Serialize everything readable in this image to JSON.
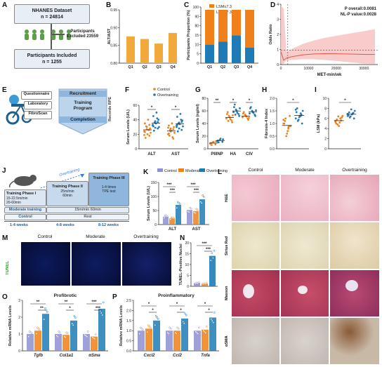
{
  "panel_letters": [
    "A",
    "B",
    "C",
    "D",
    "E",
    "F",
    "G",
    "H",
    "I",
    "J",
    "K",
    "L",
    "M",
    "N",
    "O",
    "P"
  ],
  "A": {
    "dataset_title": "NHANES Dataset",
    "dataset_n": "n = 24814",
    "excluded_title": "Participants",
    "excluded_sub": "Excluded 23559",
    "included_title": "Participants Included",
    "included_n": "n = 1255"
  },
  "E": {
    "items": [
      "Questionnaire",
      "Laboratory",
      "FibroScan"
    ],
    "recruit": "Recruitment",
    "program_line1": "Training",
    "program_line2": "Program",
    "completion": "Completion",
    "side_label": "Records RPE"
  },
  "J": {
    "overtraining": "Overtraining",
    "phase1_title": "Training Phase I",
    "phase1_d1": "15-22.5m/min",
    "phase1_d2": "20-60min",
    "phase2_title": "Training Phase II",
    "phase2_d1": "25m/min",
    "phase2_d2": "60min",
    "phase3_title": "Training Phase III",
    "phase3_d1": "1-4 times",
    "phase3_d2": "TPE test",
    "moderate": "Moderate training",
    "moderate_detail": "15m/min 60min",
    "control": "Control",
    "rest": "Rest",
    "w1": "1-4 weeks",
    "w2": "4-8 weeks",
    "w3": "8-12 weeks"
  },
  "L": {
    "col_heads": [
      "Control",
      "Moderate",
      "Overtraining"
    ],
    "row_labels": [
      "H&E",
      "Sirius Red",
      "Masson",
      "αSMA"
    ]
  },
  "M": {
    "col_heads": [
      "Control",
      "Moderate",
      "Overtraining"
    ],
    "row_label": "TUNEL"
  },
  "colors": {
    "control": "#8f8fd1",
    "moderate": "#f0801a",
    "overtraining": "#1f7bb6",
    "curve": "#e0574c",
    "band": "#f7c6c4",
    "bar_yellow": "#f2a93b"
  },
  "chart_data": [
    {
      "panel": "B",
      "type": "bar",
      "title": "",
      "ylabel": "ALT/AST",
      "categories": [
        "Q1",
        "Q2",
        "Q3",
        "Q4"
      ],
      "values": [
        0.875,
        0.868,
        0.855,
        0.885
      ],
      "ylim": [
        0.8,
        0.95
      ],
      "yticks": [
        "0.80",
        "0.85",
        "0.90",
        "0.95"
      ],
      "break": true
    },
    {
      "panel": "C",
      "type": "bar",
      "ylabel": "Participants Proportion (%)",
      "categories": [
        "Q1",
        "Q2",
        "Q3",
        "Q4"
      ],
      "series": [
        {
          "name": "LSM≤7.3",
          "values": [
            88,
            86,
            82,
            90
          ]
        },
        {
          "name": "LSM≥7.3",
          "values": [
            12,
            14,
            18,
            10
          ]
        }
      ],
      "yticks": [
        "0",
        "5",
        "10",
        "15",
        "80",
        "90",
        "100"
      ]
    },
    {
      "panel": "D",
      "type": "line",
      "xlabel": "MET-min/wk",
      "ylabel": "Odds Ratio",
      "annotations": [
        "P overall:0.0081",
        "NL-P value:0.0028"
      ],
      "x": [
        0,
        1000,
        2000,
        4000,
        8000,
        12000,
        16000,
        20000,
        25000,
        30000,
        34000
      ],
      "y": [
        0.9,
        0.3,
        0.45,
        0.55,
        0.68,
        0.74,
        0.76,
        0.75,
        0.73,
        0.71,
        0.7
      ],
      "xticks": [
        "0",
        "10000",
        "20000",
        "30000"
      ],
      "yticks": [
        "0",
        "1",
        "2",
        "3",
        "4"
      ],
      "xlim": [
        0,
        35000
      ],
      "ylim": [
        0,
        4.2
      ]
    },
    {
      "panel": "F",
      "type": "scatter",
      "ylabel": "Serum Levels (U/L)",
      "legend": [
        "Control",
        "Overtraining"
      ],
      "categories": [
        "ALT",
        "AST"
      ],
      "series": [
        {
          "name": "Control",
          "values": [
            [
              24,
              30,
              18,
              35,
              20,
              28,
              15,
              40,
              22,
              31,
              26,
              19,
              27,
              33,
              23
            ],
            [
              20,
              28,
              14,
              32,
              25,
              30,
              18,
              35,
              22,
              26,
              16,
              29,
              24,
              27,
              21
            ]
          ]
        },
        {
          "name": "Overtraining",
          "values": [
            [
              32,
              38,
              28,
              45,
              35,
              40,
              25,
              50,
              30,
              36,
              42,
              33,
              29,
              37,
              31
            ],
            [
              30,
              36,
              26,
              44,
              34,
              39,
              24,
              48,
              31,
              35,
              40,
              32,
              28,
              37,
              33
            ]
          ]
        }
      ],
      "yticks": [
        "0",
        "20",
        "40",
        "60"
      ],
      "ylim": [
        0,
        60
      ],
      "sig": [
        "*",
        "*"
      ]
    },
    {
      "panel": "G",
      "type": "scatter",
      "ylabel": "Serum Levels (ng/ml)",
      "categories": [
        "PIIINP",
        "HA",
        "CIV"
      ],
      "series": [
        {
          "name": "Control",
          "values": [
            [
              8,
              10,
              7,
              9,
              11,
              12,
              6
            ],
            [
              48,
              52,
              45,
              55,
              50,
              42,
              58,
              47,
              53,
              44
            ],
            [
              50,
              54,
              48,
              56,
              52,
              46,
              58,
              51,
              49
            ]
          ]
        },
        {
          "name": "Overtraining",
          "values": [
            [
              12,
              14,
              11,
              13,
              16,
              15,
              10
            ],
            [
              58,
              62,
              55,
              66,
              60,
              52,
              70,
              57,
              64,
              54
            ],
            [
              56,
              60,
              54,
              64,
              58,
              52,
              66,
              57,
              61
            ]
          ]
        }
      ],
      "yticks": [
        "0",
        "20",
        "40",
        "60",
        "80"
      ],
      "ylim": [
        0,
        80
      ],
      "sig": [
        "**",
        "*",
        "*"
      ]
    },
    {
      "panel": "H",
      "type": "scatter",
      "ylabel": "Fibrosis-4 Index",
      "series": [
        {
          "name": "Control",
          "values": [
            1.0,
            0.8,
            1.2,
            0.9,
            0.7,
            1.1,
            1.3,
            0.6,
            1.0,
            0.9,
            0.5,
            1.15,
            0.85
          ]
        },
        {
          "name": "Overtraining",
          "values": [
            1.2,
            1.4,
            1.1,
            1.5,
            1.3,
            1.6,
            1.0,
            1.25,
            1.45,
            1.35,
            1.15,
            1.55,
            1.3
          ]
        }
      ],
      "yticks": [
        "0.0",
        "0.5",
        "1.0",
        "1.5",
        "2.0"
      ],
      "ylim": [
        0,
        2
      ],
      "sig": [
        "*"
      ]
    },
    {
      "panel": "I",
      "type": "scatter",
      "ylabel": "LSM (kPa)",
      "series": [
        {
          "name": "Control",
          "values": [
            5.5,
            6.0,
            4.8,
            6.5,
            5.2,
            5.8,
            6.2,
            4.5,
            5.0,
            5.6,
            6.4,
            5.3
          ]
        },
        {
          "name": "Overtraining",
          "values": [
            6.5,
            7.0,
            6.2,
            7.5,
            6.8,
            7.2,
            6.0,
            7.8,
            6.6,
            7.1,
            6.4,
            6.9
          ]
        }
      ],
      "yticks": [
        "0",
        "2",
        "4",
        "6",
        "8",
        "10"
      ],
      "ylim": [
        0,
        10
      ],
      "sig": [
        "*"
      ]
    },
    {
      "panel": "K",
      "type": "bar",
      "ylabel": "Serum Levels (U/L)",
      "legend": [
        "Control",
        "Moderate",
        "Overtraining"
      ],
      "categories": [
        "ALT",
        "AST"
      ],
      "series": [
        {
          "name": "Control",
          "values": [
            28,
            52
          ]
        },
        {
          "name": "Moderate",
          "values": [
            22,
            48
          ]
        },
        {
          "name": "Overtraining",
          "values": [
            70,
            90
          ]
        }
      ],
      "yticks": [
        "0",
        "50",
        "100",
        "150"
      ],
      "ylim": [
        0,
        150
      ],
      "sig": [
        "***",
        "***",
        "***",
        "***"
      ]
    },
    {
      "panel": "N",
      "type": "bar",
      "ylabel": "TUNEL-Positive Nuclei",
      "categories": [
        "Control",
        "Moderate",
        "Overtraining"
      ],
      "values": [
        1.5,
        1.2,
        14
      ],
      "yticks": [
        "0",
        "5",
        "10",
        "15",
        "20"
      ],
      "ylim": [
        0,
        20
      ],
      "sig": [
        "***",
        "***"
      ]
    },
    {
      "panel": "O",
      "type": "bar",
      "title": "Profibrotic",
      "ylabel": "Relative mRNA Levels",
      "categories": [
        "Tgfb",
        "Col1a1",
        "αSma"
      ],
      "series": [
        {
          "name": "Control",
          "values": [
            1.0,
            1.0,
            1.0
          ]
        },
        {
          "name": "Moderate",
          "values": [
            1.2,
            0.95,
            0.85
          ]
        },
        {
          "name": "Overtraining",
          "values": [
            2.2,
            1.8,
            2.5
          ]
        }
      ],
      "yticks": [
        "0",
        "1",
        "2",
        "3"
      ],
      "ylim": [
        0,
        3
      ],
      "sig": [
        "**",
        "**",
        "**",
        "*",
        "***",
        "***"
      ]
    },
    {
      "panel": "P",
      "type": "bar",
      "title": "Proinflammatory",
      "ylabel": "Relative mRNA Levels",
      "categories": [
        "Cxcl2",
        "Ccl2",
        "Tnfa"
      ],
      "series": [
        {
          "name": "Control",
          "values": [
            1.0,
            1.0,
            1.0
          ]
        },
        {
          "name": "Moderate",
          "values": [
            1.1,
            1.0,
            1.05
          ]
        },
        {
          "name": "Overtraining",
          "values": [
            1.5,
            1.6,
            1.65
          ]
        }
      ],
      "yticks": [
        "0.0",
        "0.5",
        "1.0",
        "1.5",
        "2.0",
        "2.5"
      ],
      "ylim": [
        0,
        2.5
      ],
      "sig": [
        "*",
        "*",
        "*",
        "*",
        "*",
        "*"
      ]
    }
  ]
}
